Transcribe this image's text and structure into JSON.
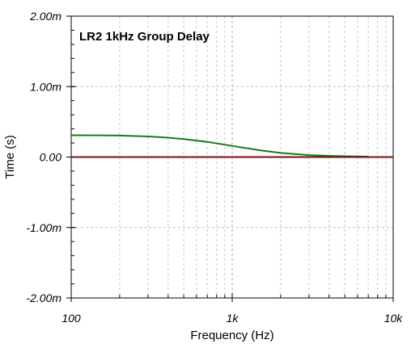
{
  "chart_data": {
    "type": "line",
    "title": "LR2 1kHz Group Delay",
    "xlabel": "Frequency (Hz)",
    "ylabel": "Time (s)",
    "x_scale": "log",
    "xlim": [
      100,
      10000
    ],
    "ylim": [
      -0.002,
      0.002
    ],
    "x_ticks": [
      {
        "value": 100,
        "label": "100"
      },
      {
        "value": 1000,
        "label": "1k"
      },
      {
        "value": 10000,
        "label": "10k"
      }
    ],
    "y_ticks": [
      {
        "value": 0.002,
        "label": "2.00m"
      },
      {
        "value": 0.001,
        "label": "1.00m"
      },
      {
        "value": 0,
        "label": "0.00"
      },
      {
        "value": -0.001,
        "label": "-1.00m"
      },
      {
        "value": -0.002,
        "label": "-2.00m"
      }
    ],
    "grid": true,
    "legend": "none",
    "series": [
      {
        "color": "#1a7a1a",
        "x": [
          100,
          150,
          200,
          300,
          400,
          500,
          700,
          1000,
          1500,
          2000,
          3000,
          4000,
          5000,
          7000
        ],
        "values": [
          0.00031,
          0.000308,
          0.000305,
          0.000292,
          0.000275,
          0.000255,
          0.000215,
          0.000158,
          9.5e-05,
          5.8e-05,
          2.8e-05,
          1.7e-05,
          1.1e-05,
          6e-06
        ]
      },
      {
        "color": "#7a0f0f",
        "x": [
          100,
          10000
        ],
        "values": [
          0,
          0
        ]
      }
    ]
  }
}
